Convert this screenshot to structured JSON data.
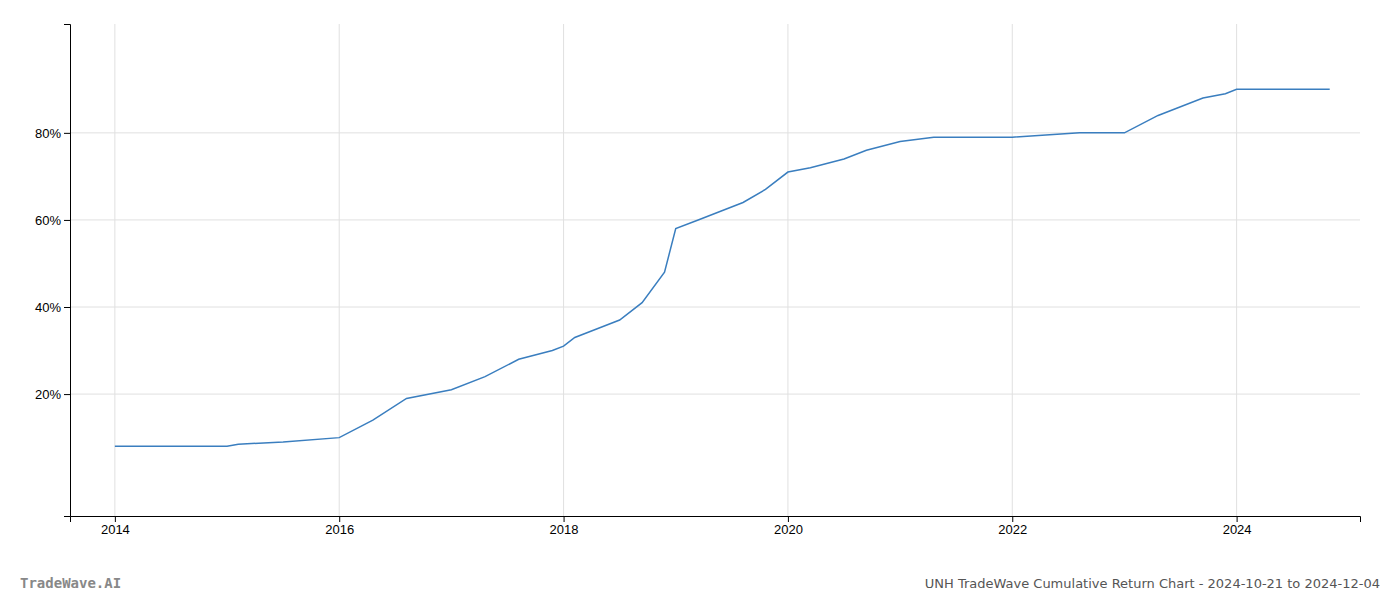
{
  "chart_data": {
    "type": "line",
    "title": "UNH TradeWave Cumulative Return Chart - 2024-10-21 to 2024-12-04",
    "annotations": [
      {
        "text": "TradeWave.AI"
      }
    ],
    "x": [
      2014.0,
      2014.5,
      2014.9,
      2015.0,
      2015.1,
      2015.5,
      2016.0,
      2016.3,
      2016.6,
      2017.0,
      2017.3,
      2017.6,
      2017.9,
      2018.0,
      2018.1,
      2018.3,
      2018.5,
      2018.7,
      2018.9,
      2019.0,
      2019.2,
      2019.4,
      2019.6,
      2019.8,
      2020.0,
      2020.2,
      2020.5,
      2020.7,
      2021.0,
      2021.3,
      2021.6,
      2021.9,
      2022.0,
      2022.3,
      2022.6,
      2022.9,
      2023.0,
      2023.3,
      2023.5,
      2023.7,
      2023.9,
      2024.0,
      2024.5,
      2024.83
    ],
    "values": [
      8,
      8,
      8,
      8,
      8.5,
      9,
      10,
      14,
      19,
      21,
      24,
      28,
      30,
      31,
      33,
      35,
      37,
      41,
      48,
      58,
      60,
      62,
      64,
      67,
      71,
      72,
      74,
      76,
      78,
      79,
      79,
      79,
      79,
      79.5,
      80,
      80,
      80,
      84,
      86,
      88,
      89,
      90,
      90,
      90
    ],
    "color": "#3a7ebf",
    "xlim": [
      2013.6,
      2025.1
    ],
    "ylim": [
      -8,
      105
    ],
    "xticks": [
      2014,
      2016,
      2018,
      2020,
      2022,
      2024
    ],
    "yticks": [
      {
        "value": 20,
        "label": "20%"
      },
      {
        "value": 40,
        "label": "40%"
      },
      {
        "value": 60,
        "label": "60%"
      },
      {
        "value": 80,
        "label": "80%"
      }
    ],
    "grid": true
  }
}
